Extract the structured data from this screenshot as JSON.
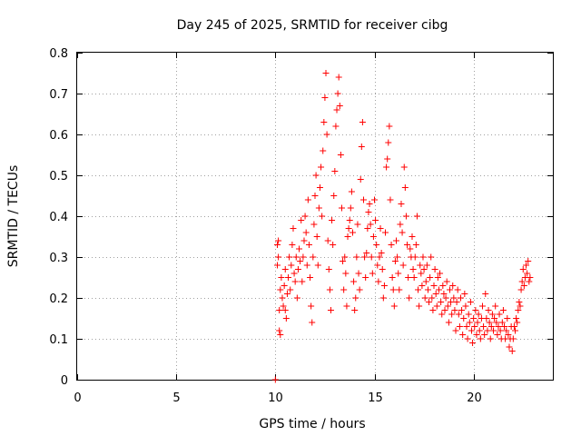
{
  "chart_data": {
    "type": "scatter",
    "title": "Day 245 of 2025, SRMTID for receiver cibg",
    "xlabel": "GPS time / hours",
    "ylabel": "SRMTID / TECUs",
    "xlim": [
      0,
      24
    ],
    "ylim": [
      0,
      0.8
    ],
    "xticks": [
      0,
      5,
      10,
      15,
      20
    ],
    "xtick_labels": [
      "0",
      "5",
      "10",
      "15",
      "20"
    ],
    "yticks": [
      0,
      0.1,
      0.2,
      0.3,
      0.4,
      0.5,
      0.6,
      0.7,
      0.8
    ],
    "ytick_labels": [
      "0",
      "0.1",
      "0.2",
      "0.3",
      "0.4",
      "0.5",
      "0.6",
      "0.7",
      "0.8"
    ],
    "grid": true,
    "marker": "+",
    "color": "#ff0000",
    "series": [
      {
        "name": "SRMTID",
        "points": [
          [
            10.0,
            0.0
          ],
          [
            10.1,
            0.28
          ],
          [
            10.1,
            0.33
          ],
          [
            10.15,
            0.34
          ],
          [
            10.15,
            0.3
          ],
          [
            10.2,
            0.17
          ],
          [
            10.2,
            0.12
          ],
          [
            10.25,
            0.11
          ],
          [
            10.25,
            0.22
          ],
          [
            10.3,
            0.25
          ],
          [
            10.35,
            0.2
          ],
          [
            10.4,
            0.18
          ],
          [
            10.45,
            0.23
          ],
          [
            10.5,
            0.27
          ],
          [
            10.5,
            0.17
          ],
          [
            10.55,
            0.15
          ],
          [
            10.6,
            0.21
          ],
          [
            10.65,
            0.25
          ],
          [
            10.7,
            0.3
          ],
          [
            10.75,
            0.22
          ],
          [
            10.8,
            0.28
          ],
          [
            10.85,
            0.33
          ],
          [
            10.9,
            0.37
          ],
          [
            10.95,
            0.26
          ],
          [
            11.0,
            0.24
          ],
          [
            11.05,
            0.3
          ],
          [
            11.1,
            0.2
          ],
          [
            11.15,
            0.27
          ],
          [
            11.2,
            0.32
          ],
          [
            11.25,
            0.29
          ],
          [
            11.3,
            0.39
          ],
          [
            11.35,
            0.24
          ],
          [
            11.4,
            0.3
          ],
          [
            11.45,
            0.34
          ],
          [
            11.5,
            0.4
          ],
          [
            11.55,
            0.36
          ],
          [
            11.6,
            0.28
          ],
          [
            11.65,
            0.44
          ],
          [
            11.7,
            0.33
          ],
          [
            11.75,
            0.25
          ],
          [
            11.8,
            0.18
          ],
          [
            11.85,
            0.14
          ],
          [
            11.9,
            0.3
          ],
          [
            11.95,
            0.38
          ],
          [
            12.0,
            0.45
          ],
          [
            12.05,
            0.5
          ],
          [
            12.1,
            0.35
          ],
          [
            12.15,
            0.28
          ],
          [
            12.2,
            0.42
          ],
          [
            12.25,
            0.47
          ],
          [
            12.3,
            0.52
          ],
          [
            12.35,
            0.4
          ],
          [
            12.4,
            0.56
          ],
          [
            12.45,
            0.63
          ],
          [
            12.5,
            0.69
          ],
          [
            12.55,
            0.75
          ],
          [
            12.6,
            0.6
          ],
          [
            12.65,
            0.34
          ],
          [
            12.7,
            0.27
          ],
          [
            12.75,
            0.22
          ],
          [
            12.8,
            0.17
          ],
          [
            12.85,
            0.39
          ],
          [
            12.9,
            0.33
          ],
          [
            12.95,
            0.45
          ],
          [
            13.0,
            0.51
          ],
          [
            13.05,
            0.62
          ],
          [
            13.1,
            0.66
          ],
          [
            13.15,
            0.7
          ],
          [
            13.2,
            0.74
          ],
          [
            13.25,
            0.67
          ],
          [
            13.3,
            0.55
          ],
          [
            13.35,
            0.42
          ],
          [
            13.4,
            0.29
          ],
          [
            13.45,
            0.22
          ],
          [
            13.5,
            0.3
          ],
          [
            13.55,
            0.26
          ],
          [
            13.6,
            0.18
          ],
          [
            13.65,
            0.35
          ],
          [
            13.7,
            0.37
          ],
          [
            13.75,
            0.39
          ],
          [
            13.8,
            0.42
          ],
          [
            13.85,
            0.46
          ],
          [
            13.9,
            0.36
          ],
          [
            13.95,
            0.24
          ],
          [
            14.0,
            0.17
          ],
          [
            14.05,
            0.2
          ],
          [
            14.1,
            0.3
          ],
          [
            14.15,
            0.38
          ],
          [
            14.2,
            0.26
          ],
          [
            14.25,
            0.22
          ],
          [
            14.3,
            0.49
          ],
          [
            14.35,
            0.57
          ],
          [
            14.4,
            0.63
          ],
          [
            14.45,
            0.44
          ],
          [
            14.5,
            0.3
          ],
          [
            14.55,
            0.25
          ],
          [
            14.6,
            0.31
          ],
          [
            14.65,
            0.37
          ],
          [
            14.7,
            0.41
          ],
          [
            14.75,
            0.43
          ],
          [
            14.8,
            0.38
          ],
          [
            14.85,
            0.3
          ],
          [
            14.9,
            0.26
          ],
          [
            14.95,
            0.35
          ],
          [
            15.0,
            0.44
          ],
          [
            15.05,
            0.39
          ],
          [
            15.1,
            0.33
          ],
          [
            15.15,
            0.28
          ],
          [
            15.2,
            0.24
          ],
          [
            15.25,
            0.3
          ],
          [
            15.3,
            0.37
          ],
          [
            15.35,
            0.31
          ],
          [
            15.4,
            0.27
          ],
          [
            15.45,
            0.2
          ],
          [
            15.5,
            0.23
          ],
          [
            15.55,
            0.36
          ],
          [
            15.6,
            0.52
          ],
          [
            15.65,
            0.54
          ],
          [
            15.7,
            0.58
          ],
          [
            15.75,
            0.62
          ],
          [
            15.8,
            0.44
          ],
          [
            15.85,
            0.33
          ],
          [
            15.9,
            0.25
          ],
          [
            15.95,
            0.22
          ],
          [
            16.0,
            0.18
          ],
          [
            16.05,
            0.29
          ],
          [
            16.1,
            0.34
          ],
          [
            16.15,
            0.3
          ],
          [
            16.2,
            0.26
          ],
          [
            16.25,
            0.22
          ],
          [
            16.3,
            0.38
          ],
          [
            16.35,
            0.43
          ],
          [
            16.4,
            0.36
          ],
          [
            16.45,
            0.28
          ],
          [
            16.5,
            0.52
          ],
          [
            16.55,
            0.47
          ],
          [
            16.6,
            0.4
          ],
          [
            16.65,
            0.33
          ],
          [
            16.7,
            0.25
          ],
          [
            16.75,
            0.2
          ],
          [
            16.8,
            0.32
          ],
          [
            16.85,
            0.3
          ],
          [
            16.9,
            0.35
          ],
          [
            16.95,
            0.27
          ],
          [
            17.0,
            0.25
          ],
          [
            17.05,
            0.3
          ],
          [
            17.1,
            0.33
          ],
          [
            17.15,
            0.4
          ],
          [
            17.2,
            0.22
          ],
          [
            17.25,
            0.18
          ],
          [
            17.3,
            0.28
          ],
          [
            17.35,
            0.26
          ],
          [
            17.4,
            0.23
          ],
          [
            17.45,
            0.3
          ],
          [
            17.5,
            0.27
          ],
          [
            17.55,
            0.2
          ],
          [
            17.6,
            0.24
          ],
          [
            17.65,
            0.28
          ],
          [
            17.7,
            0.22
          ],
          [
            17.75,
            0.19
          ],
          [
            17.8,
            0.25
          ],
          [
            17.85,
            0.3
          ],
          [
            17.9,
            0.2
          ],
          [
            17.95,
            0.17
          ],
          [
            18.0,
            0.23
          ],
          [
            18.05,
            0.27
          ],
          [
            18.1,
            0.21
          ],
          [
            18.15,
            0.18
          ],
          [
            18.2,
            0.25
          ],
          [
            18.25,
            0.22
          ],
          [
            18.3,
            0.26
          ],
          [
            18.35,
            0.19
          ],
          [
            18.4,
            0.16
          ],
          [
            18.45,
            0.23
          ],
          [
            18.5,
            0.21
          ],
          [
            18.55,
            0.17
          ],
          [
            18.6,
            0.2
          ],
          [
            18.65,
            0.24
          ],
          [
            18.7,
            0.18
          ],
          [
            18.75,
            0.14
          ],
          [
            18.8,
            0.22
          ],
          [
            18.85,
            0.19
          ],
          [
            18.9,
            0.16
          ],
          [
            18.95,
            0.23
          ],
          [
            19.0,
            0.2
          ],
          [
            19.05,
            0.17
          ],
          [
            19.1,
            0.12
          ],
          [
            19.15,
            0.19
          ],
          [
            19.2,
            0.22
          ],
          [
            19.25,
            0.16
          ],
          [
            19.3,
            0.13
          ],
          [
            19.35,
            0.2
          ],
          [
            19.4,
            0.17
          ],
          [
            19.45,
            0.11
          ],
          [
            19.5,
            0.15
          ],
          [
            19.55,
            0.21
          ],
          [
            19.6,
            0.18
          ],
          [
            19.65,
            0.13
          ],
          [
            19.7,
            0.1
          ],
          [
            19.75,
            0.16
          ],
          [
            19.8,
            0.14
          ],
          [
            19.85,
            0.19
          ],
          [
            19.9,
            0.12
          ],
          [
            19.95,
            0.09
          ],
          [
            20.0,
            0.15
          ],
          [
            20.05,
            0.13
          ],
          [
            20.1,
            0.17
          ],
          [
            20.15,
            0.11
          ],
          [
            20.2,
            0.14
          ],
          [
            20.25,
            0.16
          ],
          [
            20.3,
            0.12
          ],
          [
            20.35,
            0.1
          ],
          [
            20.4,
            0.15
          ],
          [
            20.45,
            0.18
          ],
          [
            20.5,
            0.13
          ],
          [
            20.55,
            0.11
          ],
          [
            20.6,
            0.21
          ],
          [
            20.65,
            0.15
          ],
          [
            20.7,
            0.12
          ],
          [
            20.75,
            0.17
          ],
          [
            20.8,
            0.14
          ],
          [
            20.85,
            0.1
          ],
          [
            20.9,
            0.13
          ],
          [
            20.95,
            0.16
          ],
          [
            21.0,
            0.12
          ],
          [
            21.05,
            0.15
          ],
          [
            21.1,
            0.18
          ],
          [
            21.15,
            0.14
          ],
          [
            21.2,
            0.11
          ],
          [
            21.25,
            0.13
          ],
          [
            21.3,
            0.16
          ],
          [
            21.35,
            0.12
          ],
          [
            21.4,
            0.1
          ],
          [
            21.45,
            0.14
          ],
          [
            21.5,
            0.17
          ],
          [
            21.55,
            0.13
          ],
          [
            21.6,
            0.1
          ],
          [
            21.65,
            0.12
          ],
          [
            21.7,
            0.15
          ],
          [
            21.75,
            0.11
          ],
          [
            21.8,
            0.08
          ],
          [
            21.85,
            0.1
          ],
          [
            21.9,
            0.13
          ],
          [
            21.95,
            0.07
          ],
          [
            22.0,
            0.1
          ],
          [
            22.05,
            0.13
          ],
          [
            22.1,
            0.12
          ],
          [
            22.15,
            0.15
          ],
          [
            22.2,
            0.14
          ],
          [
            22.25,
            0.17
          ],
          [
            22.3,
            0.19
          ],
          [
            22.35,
            0.18
          ],
          [
            22.4,
            0.22
          ],
          [
            22.45,
            0.24
          ],
          [
            22.5,
            0.27
          ],
          [
            22.55,
            0.23
          ],
          [
            22.6,
            0.25
          ],
          [
            22.65,
            0.28
          ],
          [
            22.7,
            0.26
          ],
          [
            22.75,
            0.29
          ],
          [
            22.8,
            0.24
          ],
          [
            22.85,
            0.25
          ]
        ]
      }
    ]
  }
}
